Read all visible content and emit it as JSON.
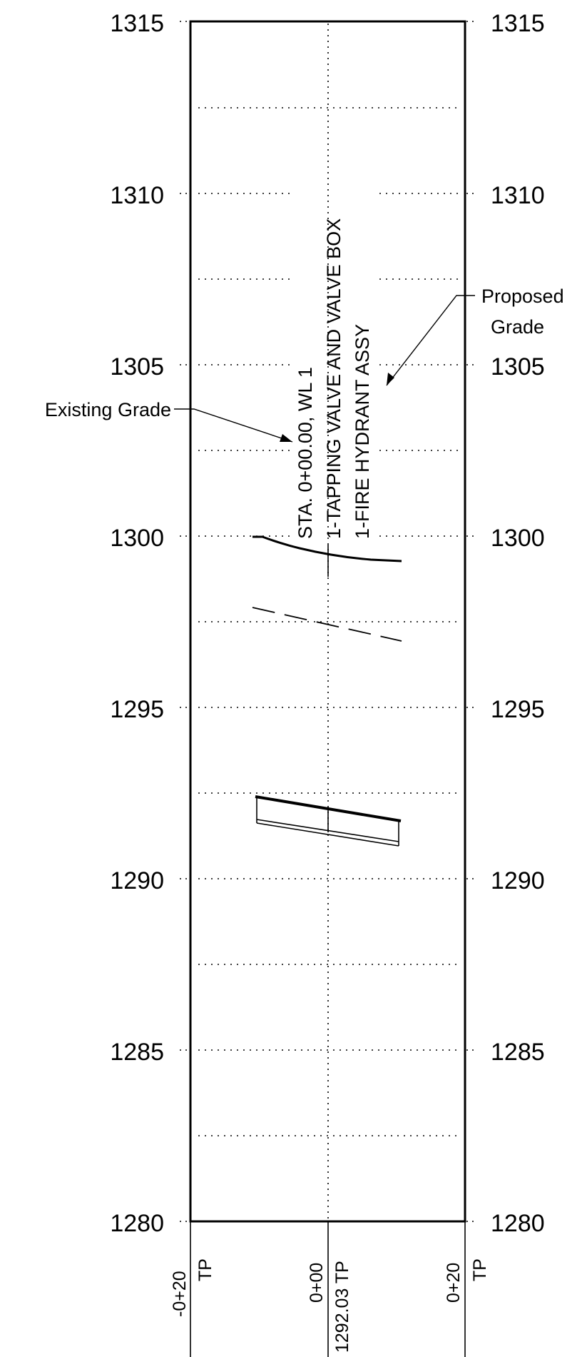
{
  "profile": {
    "elevation_labels": [
      "1315",
      "1310",
      "1305",
      "1300",
      "1295",
      "1290",
      "1285",
      "1280"
    ],
    "elevation_top": 1315,
    "elevation_bottom": 1280,
    "station_labels": {
      "left": "-0+20",
      "left_suffix": "TP",
      "center": "0+00",
      "center_elev": "1292.03 TP",
      "right": "0+20",
      "right_suffix": "TP"
    },
    "existing_grade_label": "Existing Grade",
    "proposed_grade_label_1": "Proposed",
    "proposed_grade_label_2": "Grade",
    "station_note": {
      "line1": "STA. 0+00.00, WL 1",
      "line2": "1-TAPPING VALVE AND VALVE BOX",
      "line3": "1-FIRE HYDRANT ASSY"
    }
  },
  "colors": {
    "line": "#000000",
    "background": "#ffffff"
  }
}
